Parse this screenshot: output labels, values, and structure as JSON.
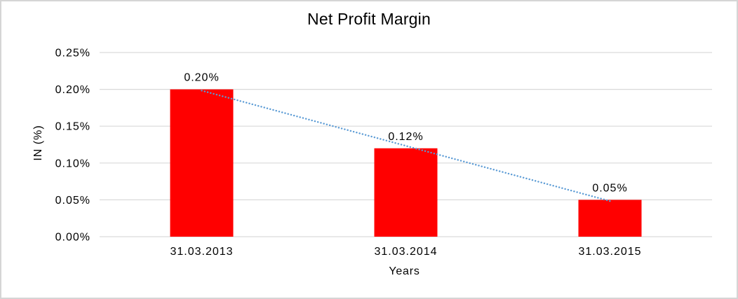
{
  "canvas": {
    "background": "#FFFFFF",
    "border_color": "#D5D5D5"
  },
  "chart_data": {
    "type": "bar",
    "title": "Net Profit Margin",
    "xlabel": "Years",
    "ylabel": "IN (%)",
    "categories": [
      "31.03.2013",
      "31.03.2014",
      "31.03.2015"
    ],
    "values": [
      0.2,
      0.12,
      0.05
    ],
    "bar_labels": [
      "0.20%",
      "0.12%",
      "0.05%"
    ],
    "y_ticks": [
      {
        "value": 0.0,
        "label": "0.00%"
      },
      {
        "value": 0.05,
        "label": "0.05%"
      },
      {
        "value": 0.1,
        "label": "0.10%"
      },
      {
        "value": 0.15,
        "label": "0.15%"
      },
      {
        "value": 0.2,
        "label": "0.20%"
      },
      {
        "value": 0.25,
        "label": "0.25%"
      }
    ],
    "ylim": [
      0,
      0.25
    ],
    "grid": "horizontal",
    "grid_color": "#D9D9D9",
    "legend": "none",
    "bar_color": "#FF0000",
    "text_color": "#000000",
    "trendline": {
      "type": "linear",
      "style": "dotted",
      "color": "#5B9BD5"
    }
  }
}
